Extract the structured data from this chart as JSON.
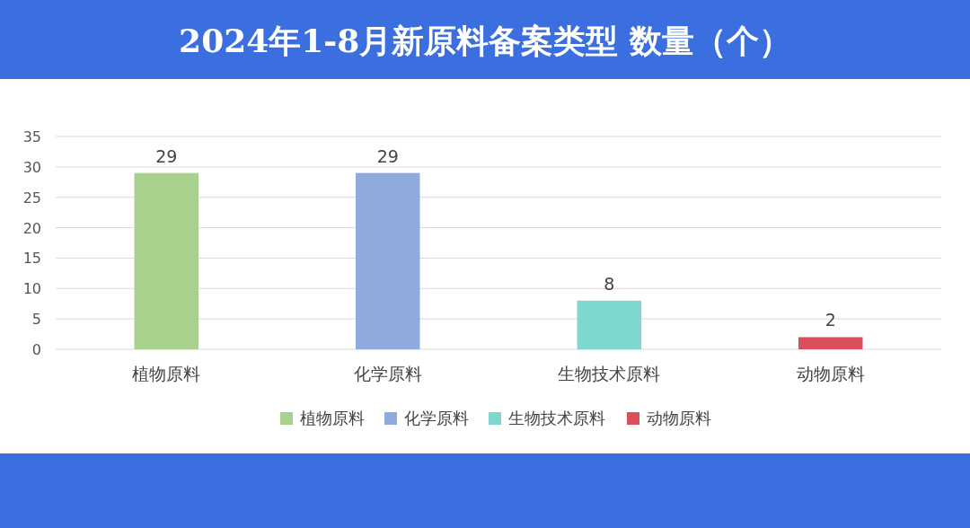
{
  "chart_data": {
    "type": "bar",
    "title": "2024年1-8月新原料备案类型 数量（个）",
    "categories": [
      "植物原料",
      "化学原料",
      "生物技术原料",
      "动物原料"
    ],
    "series": [
      {
        "name": "植物原料",
        "color": "#a9d18e",
        "values": [
          29,
          null,
          null,
          null
        ]
      },
      {
        "name": "化学原料",
        "color": "#8faadc",
        "values": [
          null,
          29,
          null,
          null
        ]
      },
      {
        "name": "生物技术原料",
        "color": "#7fd8cf",
        "values": [
          null,
          null,
          8,
          null
        ]
      },
      {
        "name": "动物原料",
        "color": "#d9505a",
        "values": [
          null,
          null,
          null,
          2
        ]
      }
    ],
    "stacked": true,
    "ylim": [
      0,
      35
    ],
    "yticks": [
      0,
      5,
      10,
      15,
      20,
      25,
      30,
      35
    ],
    "grid": "y",
    "legend": "bottom",
    "data_labels": true
  }
}
